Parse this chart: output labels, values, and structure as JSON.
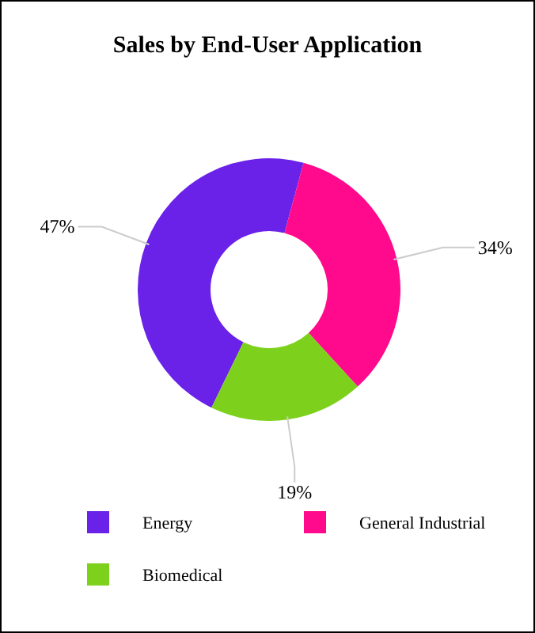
{
  "chart_data": {
    "type": "donut",
    "title": "Sales by End-User Application",
    "categories": [
      "Energy",
      "General Industrial",
      "Biomedical"
    ],
    "values": [
      47,
      34,
      19
    ],
    "colors": [
      "#6a22e8",
      "#ff0a8c",
      "#7dd11c"
    ],
    "value_labels": [
      "47%",
      "34%",
      "19%"
    ],
    "legend": "bottom"
  }
}
